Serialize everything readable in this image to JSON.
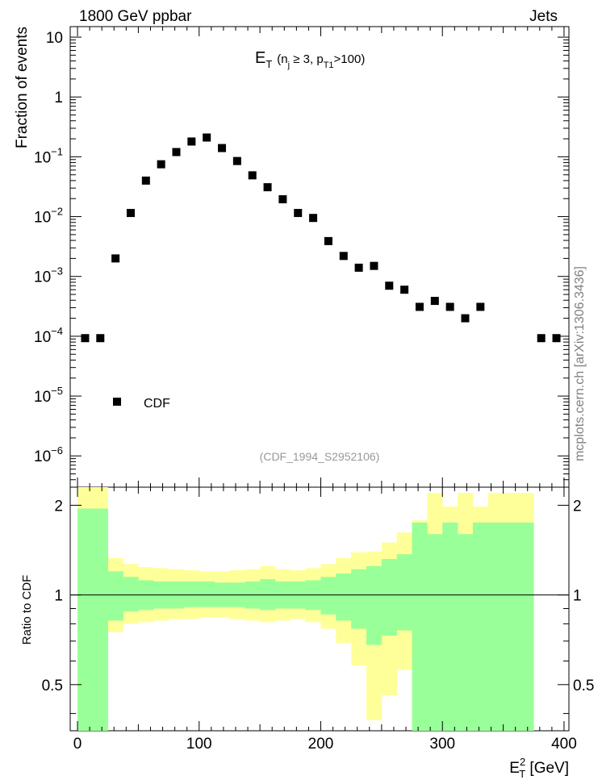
{
  "header": {
    "left": "1800 GeV ppbar",
    "right": "Jets"
  },
  "side_label": "mcplots.cern.ch [arXiv:1306.3436]",
  "chart_data": [
    {
      "type": "scatter",
      "title_main": "E",
      "title_sub_T": "T",
      "title_rest": "(n",
      "title_j": "j",
      "title_mid": " ≥ 3, p",
      "title_T1": "T1",
      "title_end": ">100)",
      "ylabel": "Fraction of events",
      "yscale": "log",
      "ylim": [
        3e-07,
        15
      ],
      "xlim": [
        -6,
        404
      ],
      "y_tick_labels": [
        {
          "base": "10",
          "exp": "",
          "value": 10
        },
        {
          "base": "1",
          "exp": "",
          "value": 1
        },
        {
          "base": "10",
          "exp": "−1",
          "value": 0.1
        },
        {
          "base": "10",
          "exp": "−2",
          "value": 0.01
        },
        {
          "base": "10",
          "exp": "−3",
          "value": 0.001
        },
        {
          "base": "10",
          "exp": "−4",
          "value": 0.0001
        },
        {
          "base": "10",
          "exp": "−5",
          "value": 1e-05
        },
        {
          "base": "10",
          "exp": "−6",
          "value": 1e-06
        }
      ],
      "legend": "CDF",
      "legend_position": "bottom-left",
      "watermark": "(CDF_1994_S2952106)",
      "series": [
        {
          "name": "CDF",
          "x": [
            6.25,
            18.75,
            31.25,
            43.75,
            56.25,
            68.75,
            81.25,
            93.75,
            106.25,
            118.75,
            131.25,
            143.75,
            156.25,
            168.75,
            181.25,
            193.75,
            206.25,
            218.75,
            231.25,
            243.75,
            256.25,
            268.75,
            281.25,
            293.75,
            306.25,
            318.75,
            331.25,
            381.25,
            393.75
          ],
          "y": [
            9.3e-05,
            9.3e-05,
            0.002,
            0.0115,
            0.04,
            0.075,
            0.12,
            0.18,
            0.21,
            0.14,
            0.085,
            0.049,
            0.031,
            0.0195,
            0.0115,
            0.0095,
            0.0039,
            0.0022,
            0.0014,
            0.0015,
            0.0007,
            0.0006,
            0.00031,
            0.00039,
            0.00031,
            0.0002,
            0.00031,
            9.3e-05,
            9.3e-05
          ]
        }
      ]
    },
    {
      "type": "area",
      "ylabel": "Ratio to CDF",
      "xlabel_main": "E",
      "xlabel_sup": "2",
      "xlabel_sub": "T",
      "xlabel_unit": " [GeV]",
      "xlim": [
        -6,
        404
      ],
      "ylim": [
        0.35,
        2.3
      ],
      "yscale": "log",
      "x_ticks": [
        0,
        100,
        200,
        300,
        400
      ],
      "y_ticks": [
        0.5,
        1,
        2
      ],
      "reference_line": 1,
      "bin_edges": [
        0,
        12.5,
        25,
        37.5,
        50,
        62.5,
        75,
        87.5,
        100,
        112.5,
        125,
        137.5,
        150,
        162.5,
        175,
        187.5,
        200,
        212.5,
        225,
        237.5,
        250,
        262.5,
        275,
        287.5,
        300,
        312.5,
        325,
        337.5,
        375,
        387.5,
        400
      ],
      "bands": [
        {
          "name": "outer",
          "color": "#ffff99",
          "high": [
            2.3,
            2.3,
            1.33,
            1.27,
            1.24,
            1.23,
            1.22,
            1.21,
            1.2,
            1.2,
            1.21,
            1.22,
            1.25,
            1.22,
            1.21,
            1.23,
            1.27,
            1.33,
            1.39,
            1.4,
            1.5,
            1.62,
            1.78,
            2.2,
            1.98,
            2.2,
            1.98,
            2.2,
            null,
            null,
            2.3,
            2.3
          ],
          "low": [
            0.35,
            0.35,
            0.75,
            0.8,
            0.81,
            0.82,
            0.83,
            0.83,
            0.84,
            0.84,
            0.83,
            0.82,
            0.81,
            0.82,
            0.83,
            0.81,
            0.77,
            0.69,
            0.58,
            0.38,
            0.46,
            0.56,
            0.35,
            0.35,
            0.35,
            0.35,
            0.35,
            0.35,
            null,
            null,
            0.35,
            0.35
          ]
        },
        {
          "name": "inner",
          "color": "#99ff99",
          "high": [
            1.95,
            1.95,
            1.2,
            1.15,
            1.12,
            1.11,
            1.11,
            1.11,
            1.11,
            1.1,
            1.1,
            1.11,
            1.13,
            1.11,
            1.11,
            1.12,
            1.15,
            1.18,
            1.22,
            1.25,
            1.32,
            1.37,
            1.75,
            1.6,
            1.75,
            1.6,
            1.75,
            1.75,
            null,
            null,
            1.95,
            1.95
          ],
          "low": [
            0.35,
            0.35,
            0.82,
            0.88,
            0.89,
            0.9,
            0.9,
            0.91,
            0.91,
            0.91,
            0.91,
            0.9,
            0.89,
            0.9,
            0.9,
            0.89,
            0.86,
            0.82,
            0.77,
            0.68,
            0.73,
            0.76,
            0.35,
            0.35,
            0.35,
            0.35,
            0.35,
            0.35,
            null,
            null,
            0.35,
            0.35
          ]
        }
      ]
    }
  ]
}
